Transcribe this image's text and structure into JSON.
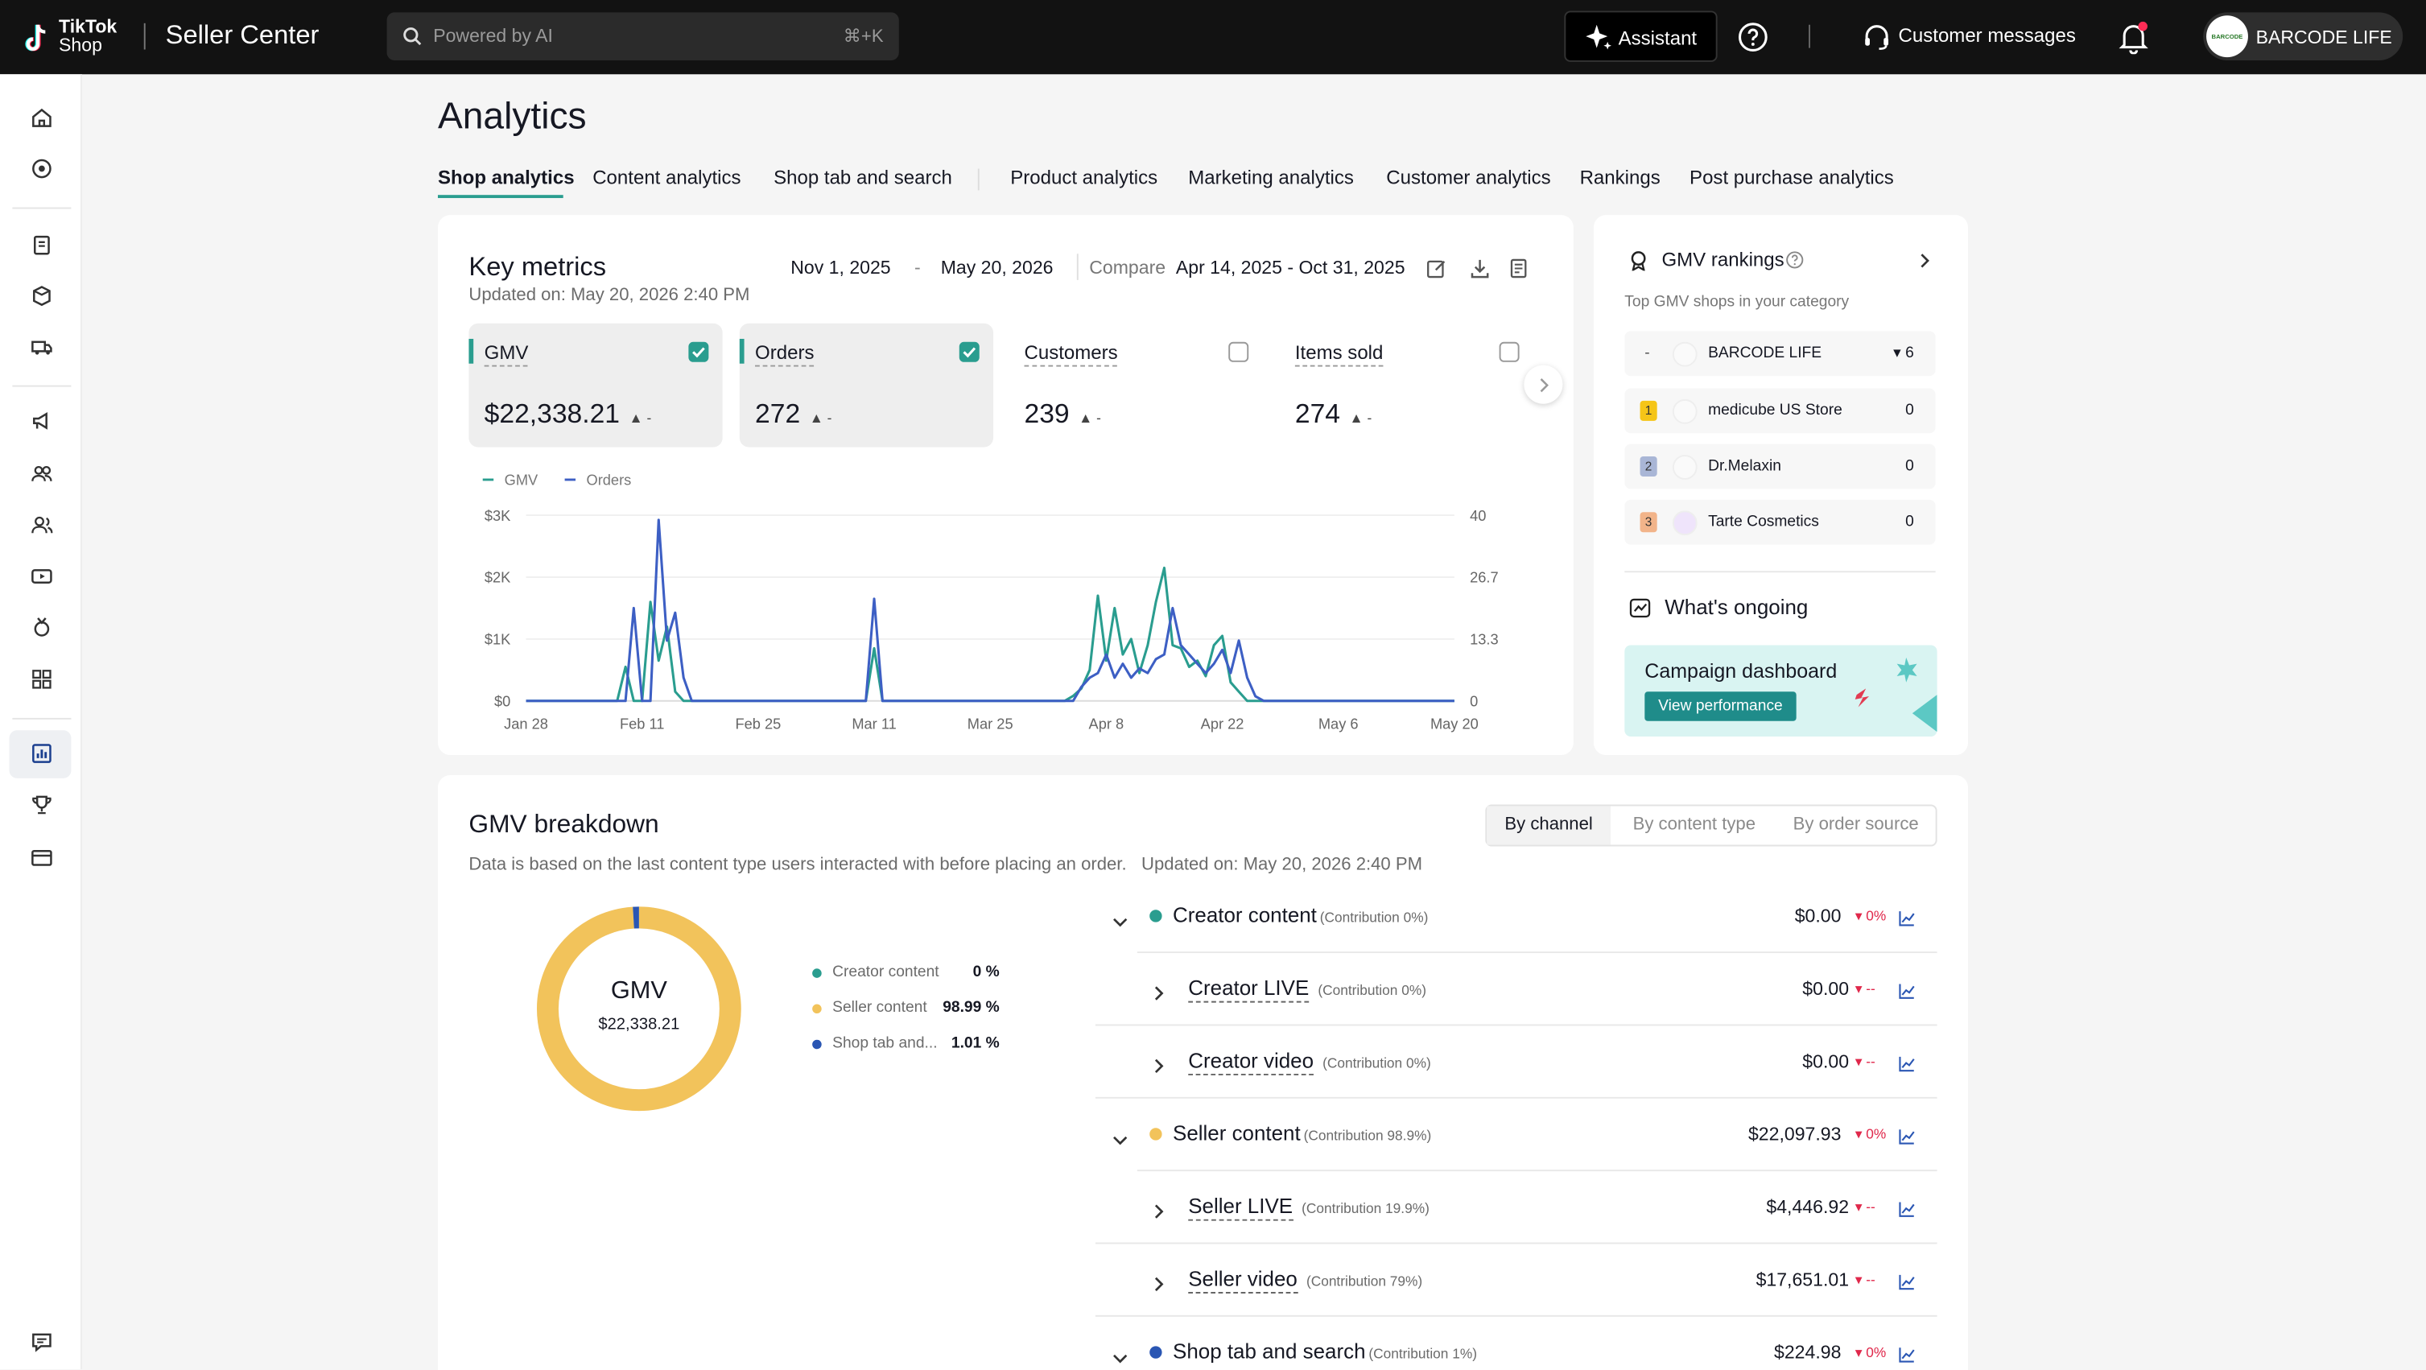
{
  "topbar": {
    "brand_line1": "TikTok",
    "brand_line2": "Shop",
    "app_title": "Seller Center",
    "search_placeholder": "Powered by AI",
    "search_shortcut": "⌘+K",
    "assistant_label": "Assistant",
    "customer_messages_label": "Customer messages",
    "account_name": "BARCODE LIFE"
  },
  "page": {
    "title": "Analytics"
  },
  "tabs": [
    {
      "label": "Shop analytics",
      "active": true
    },
    {
      "label": "Content analytics"
    },
    {
      "label": "Shop tab and search"
    },
    {
      "label": "Product analytics"
    },
    {
      "label": "Marketing analytics"
    },
    {
      "label": "Customer analytics"
    },
    {
      "label": "Rankings"
    },
    {
      "label": "Post purchase analytics"
    }
  ],
  "key_metrics": {
    "title": "Key metrics",
    "updated": "Updated on: May 20, 2026 2:40 PM",
    "date_start": "Nov 1, 2025",
    "date_sep": "-",
    "date_end": "May 20, 2026",
    "compare_label": "Compare",
    "compare_range": "Apr 14, 2025 - Oct 31, 2025",
    "metrics": [
      {
        "label": "GMV",
        "value": "$22,338.21",
        "change": "▲ -",
        "checked": true
      },
      {
        "label": "Orders",
        "value": "272",
        "change": "▲ -",
        "checked": true
      },
      {
        "label": "Customers",
        "value": "239",
        "change": "▲ -",
        "checked": false
      },
      {
        "label": "Items sold",
        "value": "274",
        "change": "▲ -",
        "checked": false
      }
    ]
  },
  "chart_data": {
    "type": "line",
    "x": [
      "Jan 28",
      "Feb 1",
      "Feb 4",
      "Feb 6",
      "Feb 8",
      "Feb 9",
      "Feb 10",
      "Feb 11",
      "Feb 12",
      "Feb 13",
      "Feb 14",
      "Feb 15",
      "Feb 16",
      "Feb 17",
      "Feb 20",
      "Feb 25",
      "Mar 1",
      "Mar 5",
      "Mar 9",
      "Mar 10",
      "Mar 11",
      "Mar 12",
      "Mar 13",
      "Mar 18",
      "Mar 25",
      "Apr 1",
      "Apr 3",
      "Apr 4",
      "Apr 5",
      "Apr 6",
      "Apr 7",
      "Apr 8",
      "Apr 9",
      "Apr 10",
      "Apr 11",
      "Apr 12",
      "Apr 13",
      "Apr 14",
      "Apr 15",
      "Apr 16",
      "Apr 17",
      "Apr 18",
      "Apr 19",
      "Apr 20",
      "Apr 21",
      "Apr 22",
      "Apr 23",
      "Apr 24",
      "Apr 25",
      "Apr 26",
      "Apr 27",
      "Apr 28",
      "Apr 29",
      "Apr 30",
      "May 1",
      "May 2",
      "May 3",
      "May 4",
      "May 5",
      "May 6",
      "May 8",
      "May 12",
      "May 16",
      "May 20"
    ],
    "series": [
      {
        "name": "GMV",
        "axis": "left",
        "color": "#2a9d8f",
        "values": [
          0,
          0,
          0,
          0,
          0,
          550,
          0,
          0,
          1600,
          650,
          1200,
          150,
          0,
          0,
          0,
          0,
          0,
          0,
          0,
          0,
          850,
          0,
          0,
          0,
          0,
          0,
          0,
          80,
          200,
          500,
          1700,
          650,
          1500,
          750,
          1000,
          450,
          900,
          1600,
          2150,
          900,
          850,
          550,
          650,
          400,
          900,
          1050,
          300,
          150,
          0,
          0,
          0,
          0,
          0,
          0,
          0,
          0,
          0,
          0,
          0,
          0,
          0,
          0,
          0,
          0
        ]
      },
      {
        "name": "Orders",
        "axis": "right",
        "color": "#3d5fc4",
        "values": [
          0,
          0,
          0,
          0,
          0,
          0,
          20,
          0,
          0,
          39,
          13,
          19,
          5,
          0,
          0,
          0,
          0,
          0,
          0,
          0,
          22,
          0,
          0,
          0,
          0,
          0,
          0,
          0,
          3,
          5,
          6,
          10,
          5,
          8,
          5,
          7,
          6,
          9,
          10,
          20,
          12,
          10,
          8,
          6,
          8,
          11,
          6,
          13,
          5,
          1,
          0,
          0,
          0,
          0,
          0,
          0,
          0,
          0,
          0,
          0,
          0,
          0,
          0,
          0
        ]
      }
    ],
    "left_ticks": [
      "$0",
      "$1K",
      "$2K",
      "$3K"
    ],
    "right_ticks": [
      "0",
      "13.3",
      "26.7",
      "40"
    ],
    "x_ticks": [
      "Jan 28",
      "Feb 11",
      "Feb 25",
      "Mar 11",
      "Mar 25",
      "Apr 8",
      "Apr 22",
      "May 6",
      "May 20"
    ],
    "ylim_left": [
      0,
      3000
    ],
    "ylim_right": [
      0,
      40
    ],
    "legend": [
      "GMV",
      "Orders"
    ],
    "legend_position": "top-left",
    "grid": true
  },
  "gmv_rankings": {
    "title": "GMV rankings",
    "subtitle": "Top GMV shops in your category",
    "rows": [
      {
        "rank": "-",
        "name": "BARCODE LIFE",
        "value": "▾ 6"
      },
      {
        "rank": "1",
        "name": "medicube US Store",
        "value": "0"
      },
      {
        "rank": "2",
        "name": "Dr.Melaxin",
        "value": "0"
      },
      {
        "rank": "3",
        "name": "Tarte Cosmetics",
        "value": "0"
      }
    ]
  },
  "ongoing": {
    "title": "What's ongoing",
    "campaign_title": "Campaign dashboard",
    "campaign_button": "View performance"
  },
  "breakdown": {
    "title": "GMV breakdown",
    "note": "Data is based on the last content type users interacted with before placing an order.   Updated on: May 20, 2026 2:40 PM",
    "segments": [
      "By channel",
      "By content type",
      "By order source"
    ],
    "donut_label": "GMV",
    "donut_value": "$22,338.21",
    "legend": [
      {
        "name": "Creator content",
        "pct": "0 %",
        "color": "#2a9d8f",
        "share": 0
      },
      {
        "name": "Seller content",
        "pct": "98.99 %",
        "color": "#f2c35b",
        "share": 98.99
      },
      {
        "name": "Shop tab and...",
        "pct": "1.01 %",
        "color": "#2a56b3",
        "share": 1.01
      }
    ],
    "rows": [
      {
        "label": "Creator content",
        "contrib": "(Contribution 0%)",
        "value": "$0.00",
        "delta": "▾ 0%",
        "level": 0,
        "dot": "#2a9d8f"
      },
      {
        "label": "Creator LIVE",
        "contrib": "(Contribution 0%)",
        "value": "$0.00",
        "delta": "▾ --",
        "level": 1
      },
      {
        "label": "Creator video",
        "contrib": "(Contribution 0%)",
        "value": "$0.00",
        "delta": "▾ --",
        "level": 1
      },
      {
        "label": "Seller content",
        "contrib": "(Contribution 98.9%)",
        "value": "$22,097.93",
        "delta": "▾ 0%",
        "level": 0,
        "dot": "#f2c35b"
      },
      {
        "label": "Seller LIVE",
        "contrib": "(Contribution 19.9%)",
        "value": "$4,446.92",
        "delta": "▾ --",
        "level": 1
      },
      {
        "label": "Seller video",
        "contrib": "(Contribution 79%)",
        "value": "$17,651.01",
        "delta": "▾ --",
        "level": 1
      },
      {
        "label": "Shop tab and search",
        "contrib": "(Contribution 1%)",
        "value": "$224.98",
        "delta": "▾ 0%",
        "level": 0,
        "dot": "#2a56b3"
      }
    ]
  }
}
